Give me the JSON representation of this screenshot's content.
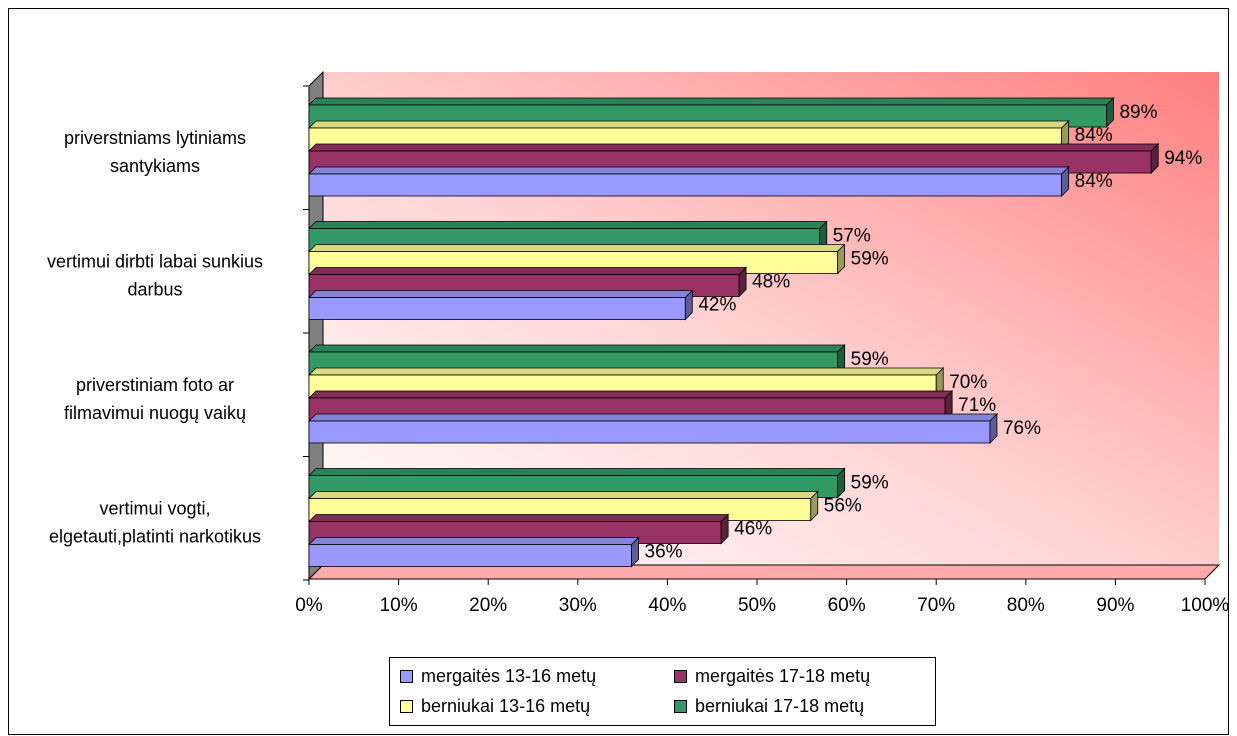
{
  "chart_data": {
    "type": "bar",
    "orientation": "horizontal",
    "categories": [
      [
        "priverstniams lytiniams",
        "santykiams"
      ],
      [
        "vertimui dirbti labai sunkius",
        "darbus"
      ],
      [
        "priverstiniam foto ar",
        "filmavimui nuogų vaikų"
      ],
      [
        "vertimui vogti,",
        "elgetauti,platinti narkotikus"
      ]
    ],
    "series": [
      {
        "name": "mergaitės 13-16 metų",
        "color": "#9999FF",
        "values": [
          84,
          42,
          76,
          36
        ],
        "labels": [
          "84%",
          "42%",
          "76%",
          "36%"
        ]
      },
      {
        "name": "mergaitės 17-18 metų",
        "color": "#993366",
        "values": [
          94,
          48,
          71,
          46
        ],
        "labels": [
          "94%",
          "48%",
          "71%",
          "46%"
        ]
      },
      {
        "name": "berniukai 13-16 metų",
        "color": "#FFFF99",
        "values": [
          84,
          59,
          70,
          56
        ],
        "labels": [
          "84%",
          "59%",
          "70%",
          "56%"
        ]
      },
      {
        "name": "berniukai 17-18 metų",
        "color": "#339966",
        "values": [
          89,
          57,
          59,
          59
        ],
        "labels": [
          "89%",
          "57%",
          "59%",
          "59%"
        ]
      }
    ],
    "xlim": [
      0,
      100
    ],
    "x_ticks": [
      "0%",
      "10%",
      "20%",
      "30%",
      "40%",
      "50%",
      "60%",
      "70%",
      "80%",
      "90%",
      "100%"
    ],
    "legend_position": "bottom",
    "style": "3d",
    "background": "gradient-red-to-white"
  }
}
